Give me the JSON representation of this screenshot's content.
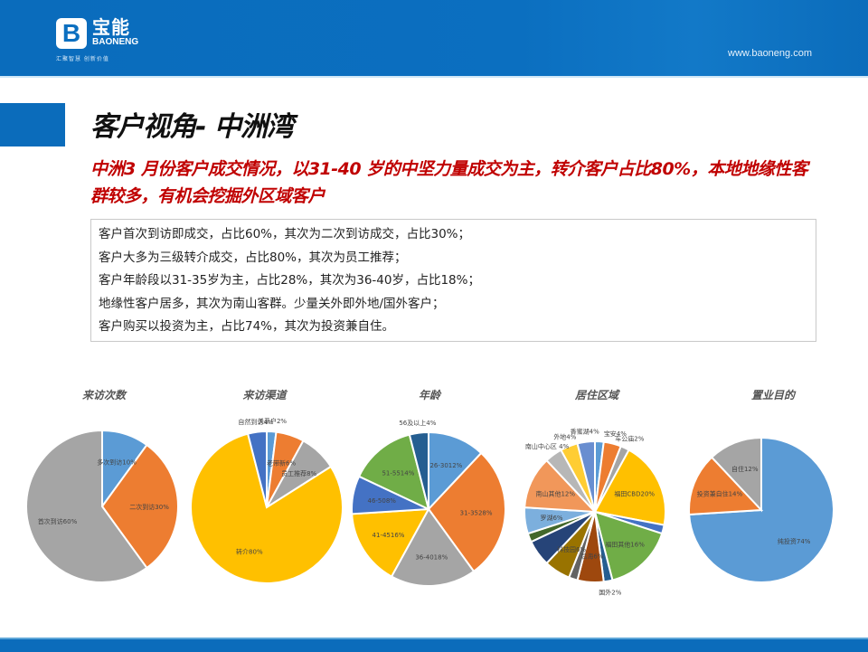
{
  "header": {
    "logo_letter": "B",
    "logo_cn": "宝能",
    "logo_en": "BAONENG",
    "slogan": "汇聚智慧  创新价值",
    "url": "www.baoneng.com"
  },
  "title": "客户视角- 中洲湾",
  "subtitle": "中洲3 月份客户成交情况，以31-40 岁的中坚力量成交为主，转介客户占比80%，本地地缘性客群较多，有机会挖掘外区域客户",
  "summary": [
    "客户首次到访即成交，占比60%，其次为二次到访成交，占比30%；",
    "客户大多为三级转介成交，占比80%，其次为员工推荐；",
    "客户年龄段以31-35岁为主，占比28%，其次为36-40岁，占比18%；",
    "地缘性客户居多，其次为南山客群。少量关外即外地/国外客户；",
    "客户购买以投资为主，占比74%，其次为投资兼自住。"
  ],
  "chart_data": [
    {
      "type": "pie",
      "title": "来访次数",
      "categories": [
        "多次到访",
        "二次到访",
        "首次到访"
      ],
      "values": [
        10,
        30,
        60
      ],
      "colors": [
        "#5b9bd5",
        "#ed7d31",
        "#a5a5a5"
      ],
      "labels": [
        "多次到访10%",
        "二次到访30%",
        "首次到访60%"
      ]
    },
    {
      "type": "pie",
      "title": "来访渠道",
      "categories": [
        "关系户",
        "老带新",
        "员工推荐",
        "转介",
        "自然到访"
      ],
      "values": [
        2,
        6,
        8,
        80,
        4
      ],
      "colors": [
        "#5b9bd5",
        "#ed7d31",
        "#a5a5a5",
        "#ffc000",
        "#4472c4"
      ],
      "labels": [
        "关系户2%",
        "老带新6%",
        "员工推荐8%",
        "转介80%",
        "自然到访4%"
      ]
    },
    {
      "type": "pie",
      "title": "年龄",
      "categories": [
        "26-30",
        "31-35",
        "36-40",
        "41-45",
        "46-50",
        "51-55",
        "56及以上"
      ],
      "values": [
        12,
        28,
        18,
        16,
        8,
        14,
        4
      ],
      "colors": [
        "#5b9bd5",
        "#ed7d31",
        "#a5a5a5",
        "#ffc000",
        "#4472c4",
        "#70ad47",
        "#255e91"
      ],
      "labels": [
        "26-3012%",
        "31-3528%",
        "36-4018%",
        "41-4516%",
        "46-508%",
        "51-5514%",
        "56及以上4%"
      ]
    },
    {
      "type": "pie",
      "title": "居住区域",
      "categories": [
        "(未标注)",
        "宝安",
        "车公庙",
        "福田CBD",
        "(未标注)",
        "福田其他",
        "国外",
        "后海",
        "(未标注)",
        "科技园",
        "(未标注)",
        "(未标注)",
        "罗湖",
        "南山其他",
        "南山中心区",
        "外地",
        "香蜜湖"
      ],
      "values": [
        2,
        4,
        2,
        20,
        2,
        16,
        2,
        6,
        2,
        6,
        6,
        2,
        6,
        12,
        4,
        4,
        4
      ],
      "colors": [
        "#5b9bd5",
        "#ed7d31",
        "#a5a5a5",
        "#ffc000",
        "#4472c4",
        "#70ad47",
        "#255e91",
        "#9e480e",
        "#636363",
        "#997300",
        "#264478",
        "#43682b",
        "#7cafdd",
        "#f1975a",
        "#b7b7b7",
        "#ffcd33",
        "#698ed0"
      ],
      "labels": [
        "",
        "宝安4%",
        "车公庙2%",
        "福田CBD20%",
        "",
        "福田其他16%",
        "国外2%",
        "后海6%",
        "",
        "科技园6%",
        "",
        "",
        "罗湖6%",
        "南山其他12%",
        "南山中心区 4%",
        "外地4%",
        "香蜜湖4%"
      ]
    },
    {
      "type": "pie",
      "title": "置业目的",
      "categories": [
        "纯投资",
        "投资兼自住",
        "自住"
      ],
      "values": [
        74,
        14,
        12
      ],
      "colors": [
        "#5b9bd5",
        "#ed7d31",
        "#a5a5a5"
      ],
      "labels": [
        "纯投资74%",
        "投资兼自住14%",
        "自住12%"
      ]
    }
  ]
}
